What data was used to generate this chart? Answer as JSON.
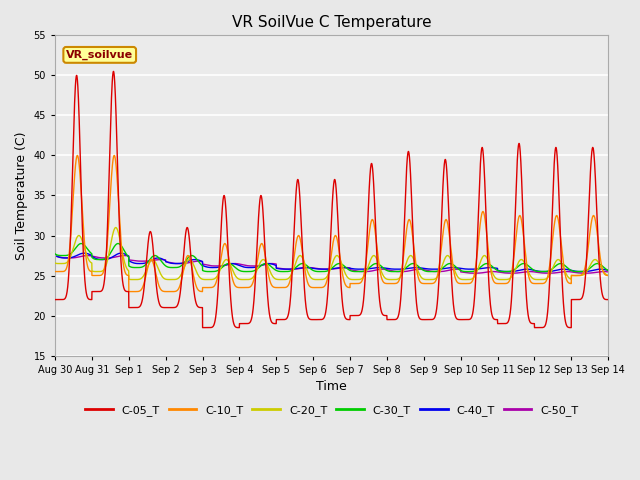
{
  "title": "VR SoilVue C Temperature",
  "xlabel": "Time",
  "ylabel": "Soil Temperature (C)",
  "ylim": [
    15,
    55
  ],
  "yticks": [
    15,
    20,
    25,
    30,
    35,
    40,
    45,
    50,
    55
  ],
  "bg_color": "#e8e8e8",
  "plot_bg_color": "#ebebeb",
  "annotation_text": "VR_soilvue",
  "annotation_bg": "#ffff99",
  "annotation_border": "#cc8800",
  "legend_labels": [
    "C-05_T",
    "C-10_T",
    "C-20_T",
    "C-30_T",
    "C-40_T",
    "C-50_T"
  ],
  "legend_colors": [
    "#dd0000",
    "#ff8800",
    "#cccc00",
    "#00cc00",
    "#0000ee",
    "#aa00aa"
  ],
  "tick_labels": [
    "Aug 30",
    "Aug 31",
    "Sep 1",
    "Sep 2",
    "Sep 3",
    "Sep 4",
    "Sep 5",
    "Sep 6",
    "Sep 7",
    "Sep 8",
    "Sep 9",
    "Sep 10",
    "Sep 11",
    "Sep 12",
    "Sep 13",
    "Sep 14"
  ]
}
